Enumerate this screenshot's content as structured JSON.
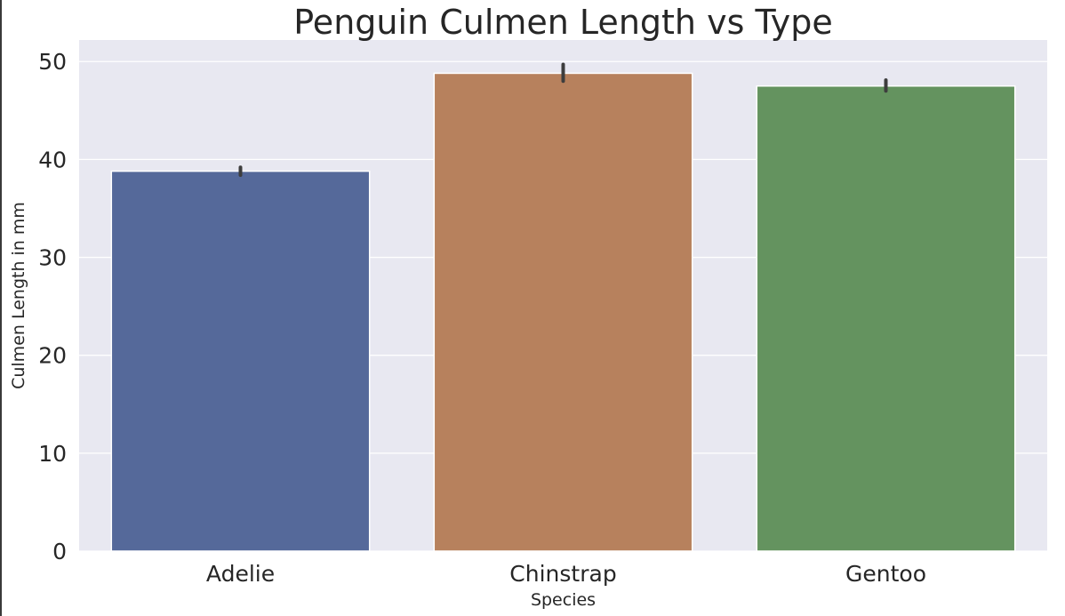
{
  "chart_data": {
    "type": "bar",
    "title": "Penguin Culmen Length vs Type",
    "xlabel": "Species",
    "ylabel": "Culmen Length in mm",
    "categories": [
      "Adelie",
      "Chinstrap",
      "Gentoo"
    ],
    "values": [
      38.8,
      48.8,
      47.5
    ],
    "error_bars": [
      [
        38.4,
        39.2
      ],
      [
        48.0,
        49.7
      ],
      [
        47.0,
        48.1
      ]
    ],
    "colors": [
      "#55699a",
      "#b7815d",
      "#64935f"
    ],
    "yticks": [
      0,
      10,
      20,
      30,
      40,
      50
    ],
    "ylim": [
      0,
      52.2
    ],
    "grid": true,
    "background": "#e8e8f1"
  }
}
